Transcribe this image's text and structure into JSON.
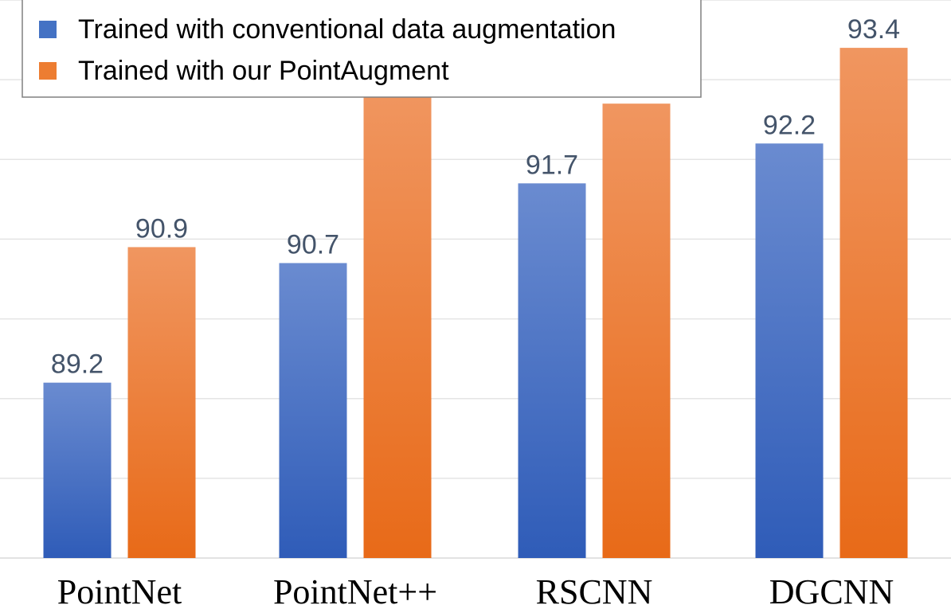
{
  "chart_data": {
    "type": "bar",
    "categories": [
      "PointNet",
      "PointNet++",
      "RSCNN",
      "DGCNN"
    ],
    "series": [
      {
        "name": "Trained with conventional data augmentation",
        "values": [
          89.2,
          90.7,
          91.7,
          92.2
        ],
        "color": "#4472c4"
      },
      {
        "name": "Trained with our PointAugment",
        "values": [
          90.9,
          92.9,
          92.7,
          93.4
        ],
        "color": "#ed7d31"
      }
    ],
    "ylim": [
      87.0,
      94.0
    ],
    "grid": true,
    "data_labels": true,
    "legend": "top-left",
    "title": "",
    "xlabel": "",
    "ylabel": ""
  }
}
